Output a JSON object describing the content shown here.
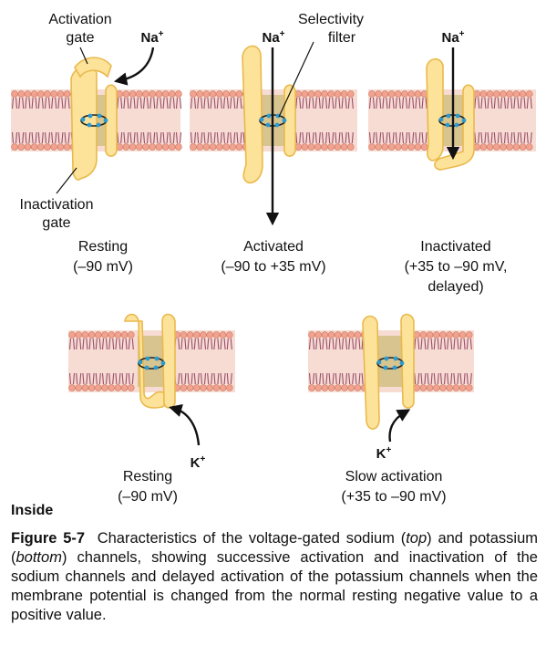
{
  "labels": {
    "activation_gate_line1": "Activation",
    "activation_gate_line2": "gate",
    "selectivity_filter_line1": "Selectivity",
    "selectivity_filter_line2": "filter",
    "inactivation_gate_line1": "Inactivation",
    "inactivation_gate_line2": "gate",
    "inside": "Inside"
  },
  "ions": {
    "na_symbol": "Na",
    "k_symbol": "K",
    "charge": "+"
  },
  "sodium_states": [
    {
      "line1": "Resting",
      "line2": "(–90 mV)",
      "line3": ""
    },
    {
      "line1": "Activated",
      "line2": "(–90 to +35 mV)",
      "line3": ""
    },
    {
      "line1": "Inactivated",
      "line2": "(+35 to –90 mV,",
      "line3": "delayed)"
    }
  ],
  "potassium_states": [
    {
      "line1": "Resting",
      "line2": "(–90 mV)"
    },
    {
      "line1": "Slow activation",
      "line2": "(+35 to –90 mV)"
    }
  ],
  "caption": {
    "figure_label": "Figure 5-7",
    "text_1": "Characteristics of the voltage-gated sodium (",
    "top": "top",
    "text_2": ") and potassium (",
    "bottom": "bottom",
    "text_3": ") channels, showing successive activation and inactivation of the sodium channels and delayed activation of the potassium channels when the membrane potential is changed from the normal resting negative value to a positive value."
  },
  "colors": {
    "membrane_fill": "#f6dcd3",
    "lipid_head": "#f2a38f",
    "lipid_tail": "#9b4d6c",
    "pore": "#d8c48f",
    "gate_fill": "#fde39a",
    "gate_stroke": "#e9b94c",
    "filter_dots": "#2a9ad0"
  }
}
